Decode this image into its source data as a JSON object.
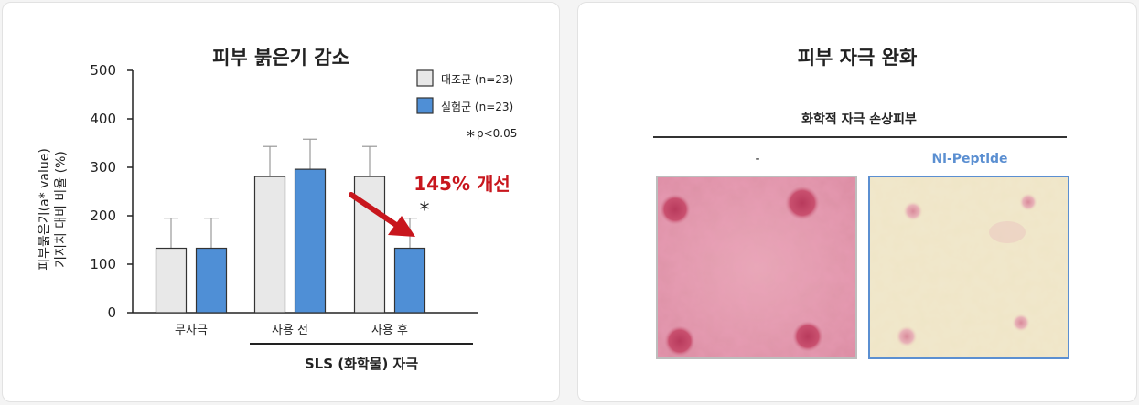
{
  "left_panel": {
    "title": "피부 붉은기 감소",
    "improvement_label": "145% 개선",
    "significance_star": "*",
    "group_label": "SLS (화학물) 자극"
  },
  "right_panel": {
    "title": "피부 자극 완화",
    "subtitle": "화학적 자극 손상피부",
    "columns": [
      {
        "label": "-"
      },
      {
        "label": "Ni-Peptide"
      }
    ]
  },
  "chart_data": {
    "type": "bar",
    "title": "피부 붉은기 감소",
    "ylabel": "피부붉은기(a* value)\n기저치 대비 비율 (%)",
    "ylabel_lines": [
      "피부붉은기(a* value)",
      "기저치 대비 비율 (%)"
    ],
    "xlabel": "",
    "categories": [
      "무자극",
      "사용 전",
      "사용 후"
    ],
    "series": [
      {
        "name": "대조군 (n=23)",
        "values": [
          133,
          281,
          281
        ],
        "errors": [
          62,
          62,
          62
        ],
        "color": "#e8e8e8"
      },
      {
        "name": "실험군 (n=23)",
        "values": [
          133,
          296,
          133
        ],
        "errors": [
          62,
          62,
          62
        ],
        "color": "#4f8fd6"
      }
    ],
    "ylim": [
      0,
      500
    ],
    "yticks": [
      "0",
      "100",
      "200",
      "300",
      "400",
      "500"
    ],
    "legend_position": "top-right",
    "annotations": [
      "*p<0.05",
      "145% 개선"
    ],
    "significance_note": "p<0.05",
    "grid": false
  },
  "colors": {
    "control": "#e8e8e8",
    "test": "#4f8fd6",
    "accent_red": "#c8161d",
    "ni_blue": "#5b8fd1"
  }
}
